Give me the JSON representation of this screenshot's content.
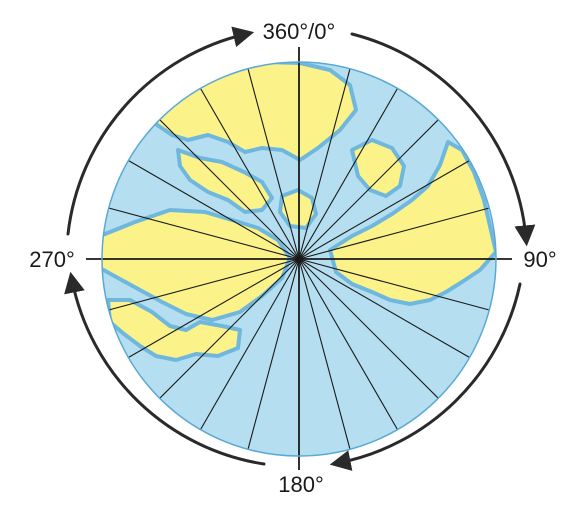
{
  "labels": {
    "north": "360°/0°",
    "east": "90°",
    "south": "180°",
    "west": "270°"
  },
  "meridians": {
    "count": 24,
    "interval_degrees": 15
  },
  "colors": {
    "ocean": "#b5dff0",
    "ocean_shallow": "#6fb7dd",
    "land": "#fbf389",
    "lines": "#1a1a1a",
    "arrows": "#2a2a2a"
  }
}
